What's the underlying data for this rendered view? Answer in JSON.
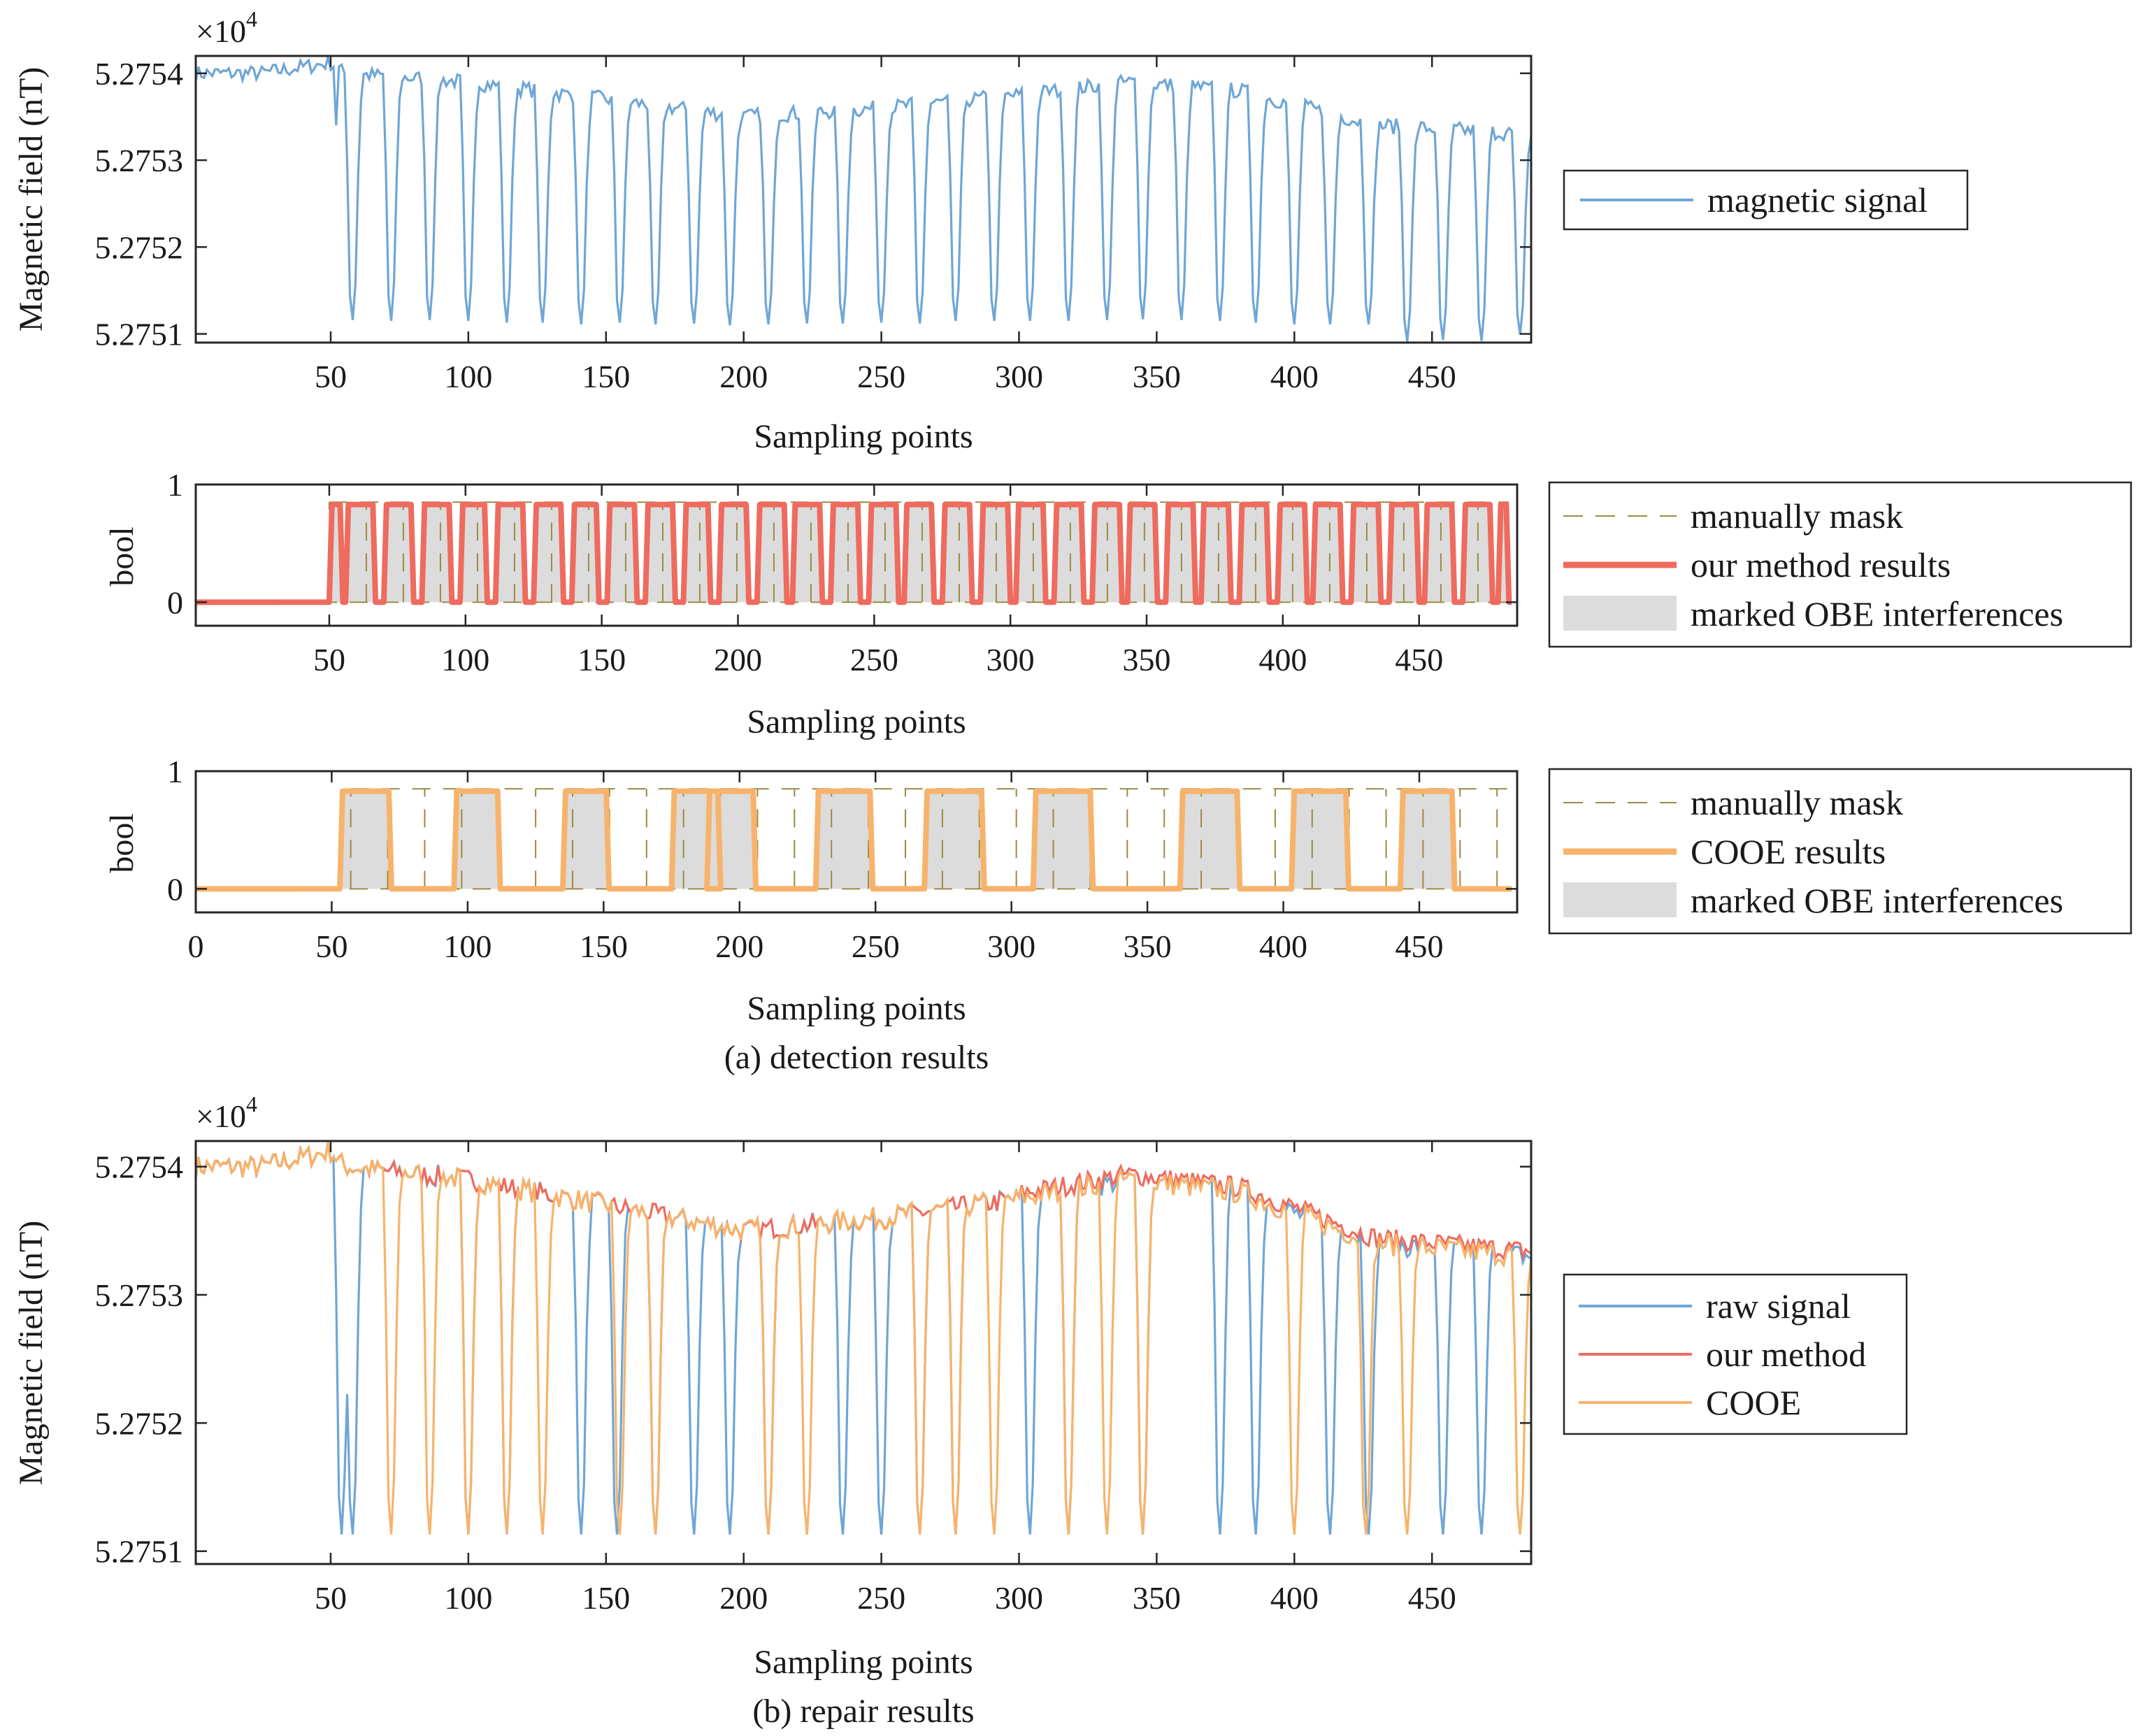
{
  "colors": {
    "raw": "#6fa6d6",
    "ours": "#ee6b5e",
    "cooe": "#f7b36b",
    "mask": "#9a8a45",
    "obe": "#dcdcdc",
    "axis": "#262626"
  },
  "captions": {
    "a": "(a) detection results",
    "b": "(b) repair results"
  },
  "chart_data": [
    {
      "id": "p1",
      "type": "line",
      "title": "",
      "xlabel": "Sampling points",
      "ylabel": "Magnetic field (nT)",
      "multiplier_base": "×10",
      "multiplier_exp": "4",
      "xlim": [
        1,
        486
      ],
      "ylim": [
        5.27509,
        5.27542
      ],
      "xticks": [
        50,
        100,
        150,
        200,
        250,
        300,
        350,
        400,
        450
      ],
      "yticks": [
        5.2751,
        5.2752,
        5.2753,
        5.2754
      ],
      "ytick_labels": [
        "5.2751",
        "5.2752",
        "5.2753",
        "5.2754"
      ],
      "legend": [
        "magnetic signal"
      ],
      "series": [
        {
          "name": "magnetic signal",
          "generator": "raw signal: baseline with periodic OBE spikes",
          "baseline": [
            [
              1,
              5.2754
            ],
            [
              25,
              5.2754
            ],
            [
              50,
              5.275412
            ],
            [
              55,
              5.2754
            ],
            [
              100,
              5.27539
            ],
            [
              150,
              5.27537
            ],
            [
              200,
              5.27535
            ],
            [
              250,
              5.27536
            ],
            [
              300,
              5.275375
            ],
            [
              340,
              5.27539
            ],
            [
              380,
              5.27538
            ],
            [
              430,
              5.27534
            ],
            [
              486,
              5.27533
            ]
          ],
          "spike_starts": [
            52,
            56,
            70,
            84,
            98,
            112,
            125,
            139,
            153,
            166,
            180,
            193,
            207,
            221,
            234,
            248,
            262,
            275,
            289,
            302,
            316,
            330,
            343,
            357,
            371,
            384,
            398,
            411,
            425,
            439,
            452,
            466,
            480
          ],
          "spike_minimums": [
            5.27534,
            5.275116,
            5.275115,
            5.275116,
            5.275115,
            5.275113,
            5.275113,
            5.275111,
            5.275113,
            5.275111,
            5.275112,
            5.27511,
            5.275111,
            5.275112,
            5.275112,
            5.275113,
            5.275112,
            5.275115,
            5.275115,
            5.275115,
            5.275115,
            5.275116,
            5.275117,
            5.275116,
            5.275115,
            5.275113,
            5.275111,
            5.275111,
            5.275111,
            5.275091,
            5.275093,
            5.275092,
            5.275099
          ]
        }
      ]
    },
    {
      "id": "p2",
      "type": "line",
      "xlabel": "Sampling points",
      "ylabel": "bool",
      "xlim": [
        1,
        486
      ],
      "ylim": [
        -0.2,
        1
      ],
      "xticks": [
        50,
        100,
        150,
        200,
        250,
        300,
        350,
        400,
        450
      ],
      "yticks": [
        0,
        1
      ],
      "ytick_labels": [
        "0",
        "1"
      ],
      "legend": [
        "manually mask",
        "our method results",
        "marked OBE interferences"
      ],
      "manually_mask_period": 13.6,
      "manually_mask_start": 50,
      "manually_mask_end": 483,
      "mask_high": 0.85,
      "our_method_segments": [
        [
          50,
          55
        ],
        [
          56,
          67
        ],
        [
          70,
          81
        ],
        [
          84,
          95
        ],
        [
          98,
          108
        ],
        [
          111,
          122
        ],
        [
          125,
          136
        ],
        [
          139,
          149
        ],
        [
          152,
          163
        ],
        [
          166,
          177
        ],
        [
          180,
          190
        ],
        [
          193,
          204
        ],
        [
          207,
          218
        ],
        [
          220,
          231
        ],
        [
          234,
          245
        ],
        [
          248,
          259
        ],
        [
          261,
          272
        ],
        [
          275,
          286
        ],
        [
          289,
          300
        ],
        [
          302,
          313
        ],
        [
          316,
          327
        ],
        [
          330,
          341
        ],
        [
          343,
          354
        ],
        [
          357,
          368
        ],
        [
          370,
          381
        ],
        [
          384,
          395
        ],
        [
          398,
          409
        ],
        [
          411,
          422
        ],
        [
          425,
          436
        ],
        [
          439,
          450
        ],
        [
          452,
          463
        ],
        [
          466,
          477
        ],
        [
          479,
          483
        ]
      ],
      "our_method_high": 0.83
    },
    {
      "id": "p3",
      "type": "line",
      "xlabel": "Sampling points",
      "ylabel": "bool",
      "xlim": [
        0,
        486
      ],
      "ylim": [
        -0.2,
        1
      ],
      "xticks": [
        0,
        50,
        100,
        150,
        200,
        250,
        300,
        350,
        400,
        450
      ],
      "yticks": [
        0,
        1
      ],
      "ytick_labels": [
        "0",
        "1"
      ],
      "legend": [
        "manually mask",
        "COOE results",
        "marked OBE interferences"
      ],
      "manually_mask_period": 13.6,
      "manually_mask_start": 57,
      "manually_mask_end": 485,
      "mask_high": 0.85,
      "cooe_segments": [
        [
          53,
          72
        ],
        [
          95,
          112
        ],
        [
          135,
          152
        ],
        [
          175,
          193
        ],
        [
          188,
          206
        ],
        [
          228,
          249
        ],
        [
          268,
          290
        ],
        [
          308,
          330
        ],
        [
          362,
          384
        ],
        [
          403,
          424
        ],
        [
          443,
          463
        ]
      ],
      "cooe_high": 0.83
    },
    {
      "id": "p4",
      "type": "line",
      "xlabel": "Sampling points",
      "ylabel": "Magnetic field (nT)",
      "multiplier_base": "×10",
      "multiplier_exp": "4",
      "xlim": [
        1,
        486
      ],
      "ylim": [
        5.27509,
        5.27542
      ],
      "xticks": [
        50,
        100,
        150,
        200,
        250,
        300,
        350,
        400,
        450
      ],
      "yticks": [
        5.2751,
        5.2752,
        5.2753,
        5.2754
      ],
      "ytick_labels": [
        "5.2751",
        "5.2752",
        "5.2753",
        "5.2754"
      ],
      "legend": [
        "raw signal",
        "our method",
        "COOE"
      ],
      "raw_spike_starts": [
        52,
        56,
        98,
        112,
        139,
        152,
        166,
        180,
        193,
        207,
        234,
        248,
        262,
        275,
        302,
        316,
        343,
        371,
        384,
        411,
        425,
        452,
        466
      ],
      "cooe_spike_starts": [
        70,
        84,
        98,
        112,
        125,
        153,
        166,
        207,
        221,
        262,
        275,
        289,
        316,
        330,
        343,
        398,
        424,
        439,
        480
      ],
      "spike_minimum_default": 5.275113
    }
  ]
}
